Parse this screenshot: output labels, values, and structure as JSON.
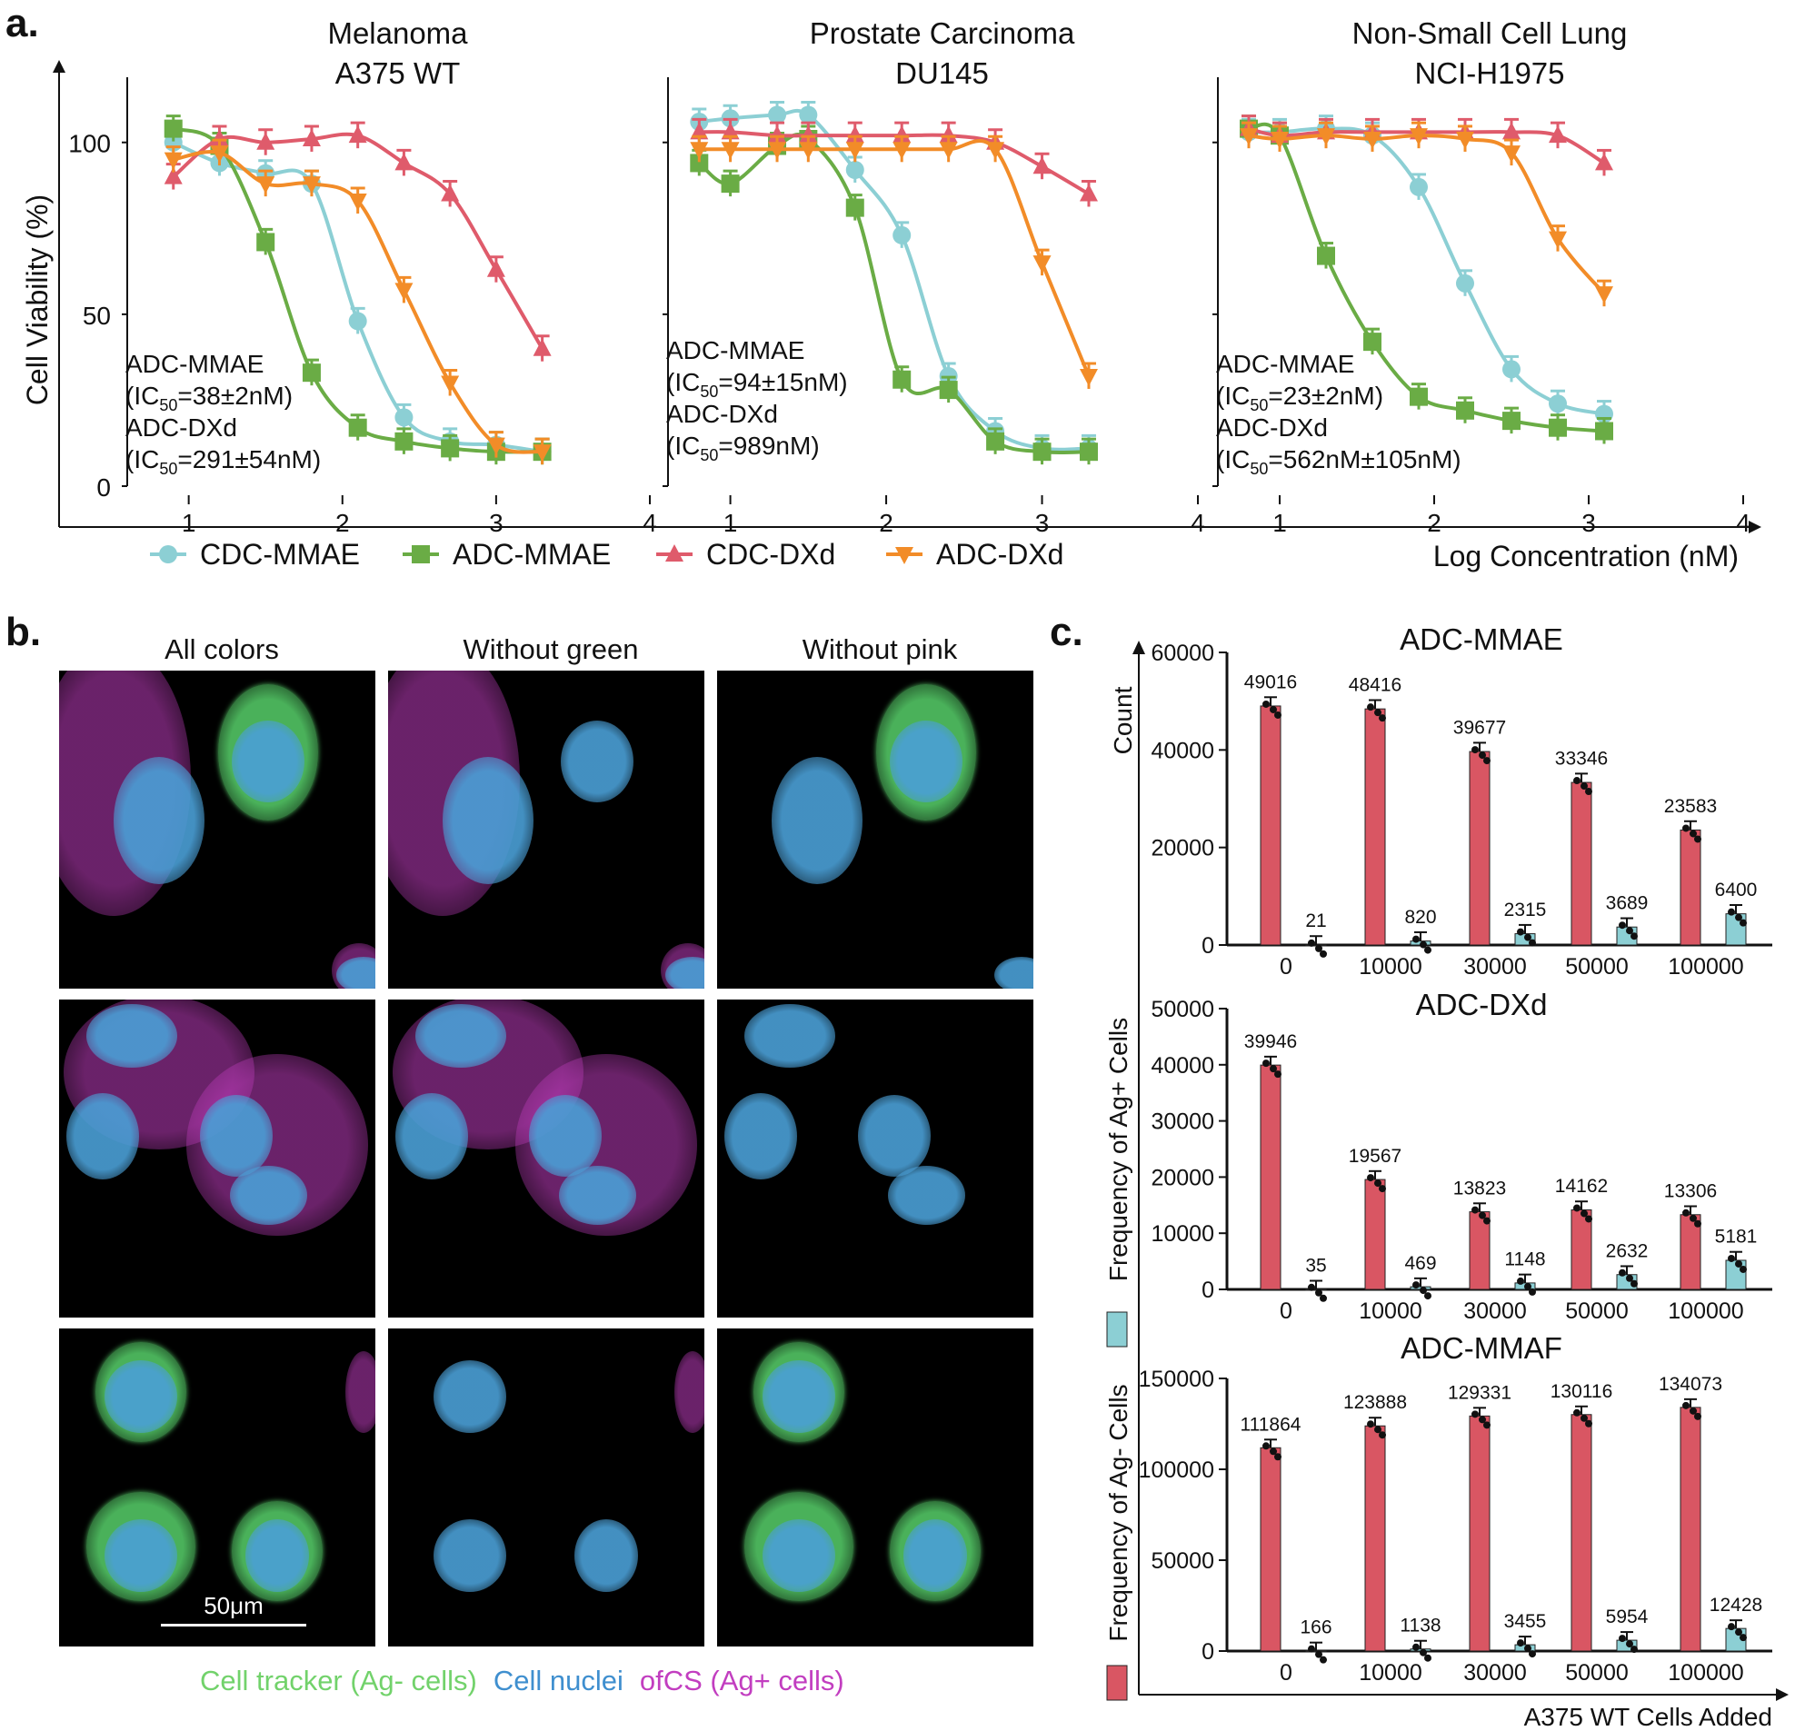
{
  "panel_labels": {
    "a": "a.",
    "b": "b.",
    "c": "c."
  },
  "chart_data": [
    {
      "type": "line",
      "panel": "a",
      "title": "Melanoma",
      "subtitle": "A375 WT",
      "ylabel": "Cell Viability (%)",
      "xlabel": "Log Concentration (nM)",
      "xlim": [
        0.6,
        4.0
      ],
      "ylim": [
        0,
        115
      ],
      "x_ticks": [
        "1",
        "2",
        "3",
        "4"
      ],
      "y_ticks": [
        "0",
        "50",
        "100"
      ],
      "annotation": [
        "ADC-MMAE",
        "(IC50=38±2nM)",
        "ADC-DXd",
        "(IC50=291±54nM)"
      ],
      "series": [
        {
          "name": "CDC-MMAE",
          "x": [
            0.9,
            1.2,
            1.5,
            1.8,
            2.1,
            2.4,
            2.7,
            3.0,
            3.3
          ],
          "y": [
            100,
            94,
            91,
            88,
            48,
            20,
            13,
            12,
            10
          ]
        },
        {
          "name": "ADC-MMAE",
          "x": [
            0.9,
            1.2,
            1.5,
            1.8,
            2.1,
            2.4,
            2.7,
            3.0,
            3.3
          ],
          "y": [
            104,
            99,
            71,
            33,
            17,
            13,
            11,
            10,
            10
          ]
        },
        {
          "name": "CDC-DXd",
          "x": [
            0.9,
            1.2,
            1.5,
            1.8,
            2.1,
            2.4,
            2.7,
            3.0,
            3.3
          ],
          "y": [
            90,
            101,
            100,
            101,
            102,
            94,
            85,
            63,
            40
          ]
        },
        {
          "name": "ADC-DXd",
          "x": [
            0.9,
            1.2,
            1.5,
            1.8,
            2.1,
            2.4,
            2.7,
            3.0,
            3.3
          ],
          "y": [
            95,
            97,
            88,
            88,
            83,
            57,
            30,
            12,
            10
          ]
        }
      ]
    },
    {
      "type": "line",
      "panel": "a",
      "title": "Prostate Carcinoma",
      "subtitle": "DU145",
      "xlim": [
        0.6,
        4.0
      ],
      "ylim": [
        0,
        115
      ],
      "x_ticks": [
        "1",
        "2",
        "3",
        "4"
      ],
      "annotation": [
        "ADC-MMAE",
        "(IC50=94±15nM)",
        "ADC-DXd",
        "(IC50=989nM)"
      ],
      "series": [
        {
          "name": "CDC-MMAE",
          "x": [
            0.8,
            1.0,
            1.3,
            1.5,
            1.8,
            2.1,
            2.4,
            2.7,
            3.0,
            3.3
          ],
          "y": [
            106,
            107,
            108,
            108,
            92,
            73,
            32,
            16,
            11,
            11
          ]
        },
        {
          "name": "ADC-MMAE",
          "x": [
            0.8,
            1.0,
            1.3,
            1.5,
            1.8,
            2.1,
            2.4,
            2.7,
            3.0,
            3.3
          ],
          "y": [
            94,
            88,
            99,
            101,
            81,
            31,
            28,
            13,
            10,
            10
          ]
        },
        {
          "name": "CDC-DXd",
          "x": [
            0.8,
            1.0,
            1.3,
            1.5,
            1.8,
            2.1,
            2.4,
            2.7,
            3.0,
            3.3
          ],
          "y": [
            103,
            103,
            102,
            102,
            102,
            102,
            102,
            100,
            93,
            85
          ]
        },
        {
          "name": "ADC-DXd",
          "x": [
            0.8,
            1.0,
            1.3,
            1.5,
            1.8,
            2.1,
            2.4,
            2.7,
            3.0,
            3.3
          ],
          "y": [
            98,
            98,
            98,
            98,
            98,
            98,
            98,
            98,
            65,
            32
          ]
        }
      ]
    },
    {
      "type": "line",
      "panel": "a",
      "title": "Non-Small Cell Lung",
      "subtitle": "NCI-H1975",
      "xlim": [
        0.6,
        4.0
      ],
      "ylim": [
        0,
        115
      ],
      "x_ticks": [
        "1",
        "2",
        "3",
        "4"
      ],
      "annotation": [
        "ADC-MMAE",
        "(IC50=23±2nM)",
        "ADC-DXd",
        "(IC50=562nM±105nM)"
      ],
      "series": [
        {
          "name": "CDC-MMAE",
          "x": [
            0.8,
            1.0,
            1.3,
            1.6,
            1.9,
            2.2,
            2.5,
            2.8,
            3.1
          ],
          "y": [
            103,
            103,
            104,
            102,
            87,
            59,
            34,
            24,
            21
          ]
        },
        {
          "name": "ADC-MMAE",
          "x": [
            0.8,
            1.0,
            1.3,
            1.6,
            1.9,
            2.2,
            2.5,
            2.8,
            3.1
          ],
          "y": [
            104,
            102,
            67,
            42,
            26,
            22,
            19,
            17,
            16
          ]
        },
        {
          "name": "CDC-DXd",
          "x": [
            0.8,
            1.0,
            1.3,
            1.6,
            1.9,
            2.2,
            2.5,
            2.8,
            3.1
          ],
          "y": [
            104,
            102,
            103,
            103,
            103,
            103,
            103,
            102,
            94
          ]
        },
        {
          "name": "ADC-DXd",
          "x": [
            0.8,
            1.0,
            1.3,
            1.6,
            1.9,
            2.2,
            2.5,
            2.8,
            3.1
          ],
          "y": [
            102,
            101,
            102,
            101,
            102,
            101,
            97,
            72,
            56
          ]
        }
      ]
    },
    {
      "type": "bar",
      "panel": "c",
      "title": "ADC-MMAE",
      "categories": [
        "0",
        "10000",
        "30000",
        "50000",
        "100000"
      ],
      "ylim": [
        0,
        60000
      ],
      "y_ticks": [
        "0",
        "20000",
        "40000",
        "60000"
      ],
      "series": [
        {
          "name": "Frequency of Ag- Cells",
          "values": [
            49016,
            48416,
            39677,
            33346,
            23583
          ],
          "labels": [
            "49016",
            "48416",
            "39677",
            "33346",
            "23583"
          ]
        },
        {
          "name": "Frequency of Ag+ Cells",
          "values": [
            21,
            820,
            2315,
            3689,
            6400
          ],
          "labels": [
            "21",
            "820",
            "2315",
            "3689",
            "6400"
          ]
        }
      ]
    },
    {
      "type": "bar",
      "panel": "c",
      "title": "ADC-DXd",
      "categories": [
        "0",
        "10000",
        "30000",
        "50000",
        "100000"
      ],
      "ylim": [
        0,
        50000
      ],
      "y_ticks": [
        "0",
        "10000",
        "20000",
        "30000",
        "40000",
        "50000"
      ],
      "series": [
        {
          "name": "Frequency of Ag- Cells",
          "values": [
            39946,
            19567,
            13823,
            14162,
            13306
          ],
          "labels": [
            "39946",
            "19567",
            "13823",
            "14162",
            "13306"
          ]
        },
        {
          "name": "Frequency of Ag+ Cells",
          "values": [
            35,
            469,
            1148,
            2632,
            5181
          ],
          "labels": [
            "35",
            "469",
            "1148",
            "2632",
            "5181"
          ]
        }
      ]
    },
    {
      "type": "bar",
      "panel": "c",
      "title": "ADC-MMAF",
      "categories": [
        "0",
        "10000",
        "30000",
        "50000",
        "100000"
      ],
      "ylim": [
        0,
        150000
      ],
      "y_ticks": [
        "0",
        "50000",
        "100000",
        "150000"
      ],
      "series": [
        {
          "name": "Frequency of Ag- Cells",
          "values": [
            111864,
            123888,
            129331,
            130116,
            134073
          ],
          "labels": [
            "111864",
            "123888",
            "129331",
            "130116",
            "134073"
          ]
        },
        {
          "name": "Frequency of Ag+ Cells",
          "values": [
            166,
            1138,
            3455,
            5954,
            12428
          ],
          "labels": [
            "166",
            "1138",
            "3455",
            "5954",
            "12428"
          ]
        }
      ]
    }
  ],
  "panel_c_axes": {
    "ylabel": "Count",
    "xlabel": "A375 WT Cells Added",
    "legend": [
      "Frequency of Ag+ Cells",
      "Frequency of Ag- Cells"
    ]
  },
  "legend_a": [
    "CDC-MMAE",
    "ADC-MMAE",
    "CDC-DXd",
    "ADC-DXd"
  ],
  "colors": {
    "CDC-MMAE": "#8ccfd4",
    "ADC-MMAE": "#6aac45",
    "CDC-DXd": "#df5b6b",
    "ADC-DXd": "#f28c28",
    "bar_neg": "#d95663",
    "bar_pos": "#8ccfd4",
    "green_stain": "#57d06a",
    "blue_stain": "#4a9fd6",
    "pink_stain": "#c23ec0"
  },
  "microscopy": {
    "columns": [
      "All colors",
      "Without green",
      "Without pink"
    ],
    "scale_label": "50μm",
    "legend": [
      {
        "text": "Cell tracker (Ag- cells)",
        "color": "#72d26b"
      },
      {
        "text": "Cell nuclei",
        "color": "#3f8fcf"
      },
      {
        "text": "ofCS (Ag+ cells)",
        "color": "#c23ec0"
      }
    ]
  }
}
